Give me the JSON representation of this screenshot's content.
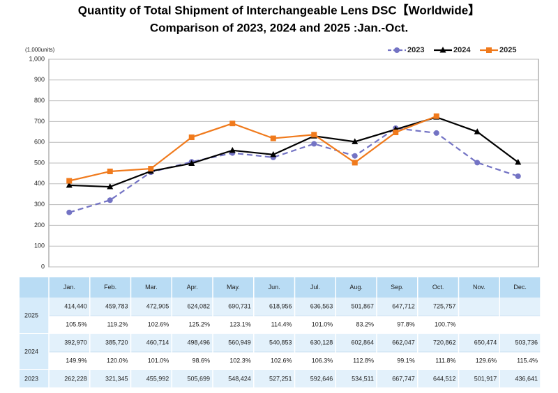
{
  "chart_data": {
    "type": "line",
    "title": "Quantity of Total Shipment of Interchangeable Lens DSC【Worldwide】",
    "subtitle": "Comparison of 2023, 2024 and 2025 :Jan.-Oct.",
    "y_label": "(1,000units)",
    "categories": [
      "Jan.",
      "Feb.",
      "Mar.",
      "Apr.",
      "May.",
      "Jun.",
      "Jul.",
      "Aug.",
      "Sep.",
      "Oct.",
      "Nov.",
      "Dec."
    ],
    "ylim": [
      0,
      1000
    ],
    "yticks": [
      0,
      100,
      200,
      300,
      400,
      500,
      600,
      700,
      800,
      900,
      {
        "value": 1000,
        "label": "1,000"
      }
    ],
    "grid": true,
    "legend": "top-right",
    "series": [
      {
        "name": "2023",
        "color": "#7373c4",
        "dash": true,
        "marker": "circle",
        "values": [
          262.228,
          321.345,
          455.992,
          505.699,
          548.424,
          527.251,
          592.646,
          534.511,
          667.747,
          644.512,
          501.917,
          436.641
        ],
        "value_labels": [
          "262,228",
          "321,345",
          "455,992",
          "505,699",
          "548,424",
          "527,251",
          "592,646",
          "534,511",
          "667,747",
          "644,512",
          "501,917",
          "436,641"
        ]
      },
      {
        "name": "2024",
        "color": "#000000",
        "dash": false,
        "marker": "triangle",
        "values": [
          392.97,
          385.72,
          460.714,
          498.496,
          560.949,
          540.853,
          630.128,
          602.864,
          662.047,
          720.862,
          650.474,
          503.736
        ],
        "value_labels": [
          "392,970",
          "385,720",
          "460,714",
          "498,496",
          "560,949",
          "540,853",
          "630,128",
          "602,864",
          "662,047",
          "720,862",
          "650,474",
          "503,736"
        ],
        "yoy": [
          "149.9%",
          "120.0%",
          "101.0%",
          "98.6%",
          "102.3%",
          "102.6%",
          "106.3%",
          "112.8%",
          "99.1%",
          "111.8%",
          "129.6%",
          "115.4%"
        ]
      },
      {
        "name": "2025",
        "color": "#f07a1c",
        "dash": false,
        "marker": "square",
        "values": [
          414.44,
          459.783,
          472.905,
          624.082,
          690.731,
          618.956,
          636.563,
          501.867,
          647.712,
          725.757,
          null,
          null
        ],
        "value_labels": [
          "414,440",
          "459,783",
          "472,905",
          "624,082",
          "690,731",
          "618,956",
          "636,563",
          "501,867",
          "647,712",
          "725,757",
          null,
          null
        ],
        "yoy": [
          "105.5%",
          "119.2%",
          "102.6%",
          "125.2%",
          "123.1%",
          "114.4%",
          "101.0%",
          "83.2%",
          "97.8%",
          "100.7%",
          null,
          null
        ]
      }
    ]
  }
}
